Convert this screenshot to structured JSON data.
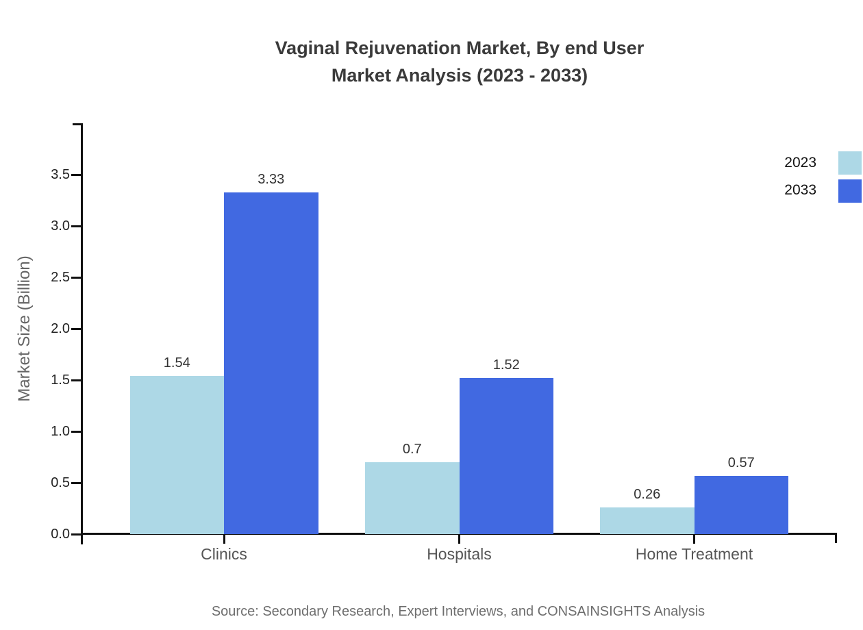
{
  "title": {
    "line1": "Vaginal Rejuvenation Market, By end User",
    "line2": "Market Analysis (2023 - 2033)"
  },
  "source": "Source: Secondary Research, Expert Interviews, and CONSAINSIGHTS Analysis",
  "colors": {
    "series_2023": "#ADD8E6",
    "series_2033": "#4169E1",
    "axis": "#111111",
    "title_text": "#3a3a3a",
    "category_text": "#555555",
    "value_text": "#333333",
    "source_text": "#6e6e6e"
  },
  "chart_data": {
    "type": "bar",
    "title": "Vaginal Rejuvenation Market, By end User Market Analysis (2023 - 2033)",
    "xlabel": "",
    "ylabel": "Market Size (Billion)",
    "categories": [
      "Clinics",
      "Hospitals",
      "Home Treatment"
    ],
    "series": [
      {
        "name": "2023",
        "color": "#ADD8E6",
        "values": [
          1.54,
          0.7,
          0.26
        ],
        "labels": [
          "1.54",
          "0.7",
          "0.26"
        ]
      },
      {
        "name": "2033",
        "color": "#4169E1",
        "values": [
          3.33,
          1.52,
          0.57
        ],
        "labels": [
          "3.33",
          "1.52",
          "0.57"
        ]
      }
    ],
    "ylim": [
      0,
      4.0
    ],
    "yticks": [
      "0.0",
      "0.5",
      "1.0",
      "1.5",
      "2.0",
      "2.5",
      "3.0",
      "3.5"
    ],
    "grid": false,
    "legend_position": "top-right",
    "value_labels_shown": true
  }
}
